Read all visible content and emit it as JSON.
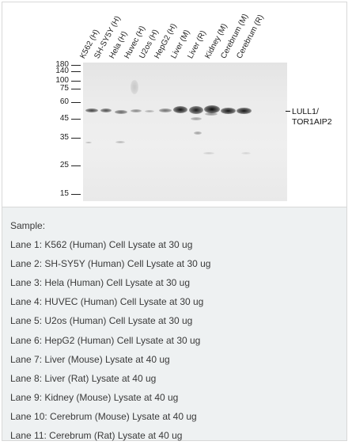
{
  "figure": {
    "lane_labels": [
      "K562 (H)",
      "SH-SY5Y (H)",
      "Hela (H)",
      "Huvec (H)",
      "U2os (H)",
      "HepG2 (H)",
      "Liver (M)",
      "Liver (R)",
      "Kidney (M)",
      "Cerebrum (M)",
      "Cerebrum (R)"
    ],
    "mw_markers": [
      "180",
      "140",
      "100",
      "75",
      "60",
      "45",
      "35",
      "25",
      "15"
    ],
    "target_label_line1": "LULL1/",
    "target_label_line2": "TOR1AIP2"
  },
  "legend": {
    "heading": "Sample:",
    "lanes": [
      "Lane 1: K562 (Human) Cell Lysate at 30 ug",
      "Lane 2: SH-SY5Y (Human) Cell Lysate at 30 ug",
      "Lane 3: Hela (Human) Cell Lysate at 30 ug",
      "Lane 4: HUVEC (Human) Cell Lysate at 30 ug",
      "Lane 5: U2os (Human) Cell Lysate at 30 ug",
      "Lane 6: HepG2 (Human) Cell Lysate at 30 ug",
      "Lane 7: Liver (Mouse) Lysate at 40 ug",
      "Lane 8: Liver (Rat) Lysate at 40 ug",
      "Lane 9: Kidney (Mouse) Lysate at 40 ug",
      "Lane 10: Cerebrum (Mouse) Lysate at 40 ug",
      "Lane 11: Cerebrum (Rat) Lysate at 40 ug"
    ]
  }
}
